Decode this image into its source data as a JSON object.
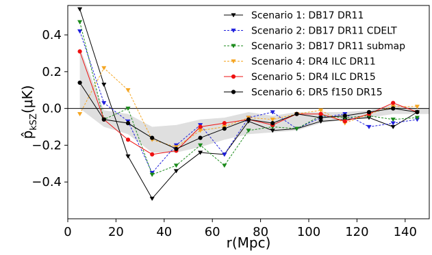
{
  "chart_data": {
    "type": "line",
    "xlabel": "r(Mpc)",
    "ylabel": "p̂kSZ(μK)",
    "ylabel_main": "p̂",
    "ylabel_sub": "kSZ",
    "ylabel_unit": "(μK)",
    "xlim": [
      0,
      150
    ],
    "ylim": [
      -0.6,
      0.56
    ],
    "x_ticks": [
      0,
      20,
      40,
      60,
      80,
      100,
      120,
      140
    ],
    "x_tick_labels": [
      "0",
      "20",
      "40",
      "60",
      "80",
      "100",
      "120",
      "140"
    ],
    "y_ticks": [
      -0.4,
      -0.2,
      0.0,
      0.2,
      0.4
    ],
    "y_tick_labels": [
      "−0.4",
      "−0.2",
      "0.0",
      "0.2",
      "0.4"
    ],
    "grid": false,
    "legend_position": "top-right",
    "zero_line": true,
    "band": {
      "x": [
        5,
        15,
        25,
        35,
        45,
        55,
        65,
        75,
        85,
        95,
        105,
        115,
        125,
        135,
        145,
        150
      ],
      "upper": [
        0.33,
        -0.01,
        -0.03,
        -0.1,
        -0.09,
        -0.06,
        -0.05,
        -0.02,
        -0.04,
        -0.02,
        -0.02,
        -0.02,
        -0.01,
        0.02,
        0.0,
        0.0
      ],
      "lower": [
        0.0,
        -0.1,
        -0.14,
        -0.24,
        -0.24,
        -0.21,
        -0.17,
        -0.14,
        -0.13,
        -0.12,
        -0.08,
        -0.06,
        -0.05,
        -0.03,
        -0.03,
        -0.03
      ]
    },
    "x": [
      5,
      15,
      25,
      35,
      45,
      55,
      65,
      75,
      85,
      95,
      105,
      115,
      125,
      135,
      145
    ],
    "series": [
      {
        "name": "Scenario 1: DB17 DR11",
        "color": "#000000",
        "dash": "solid",
        "marker": "triangle-down",
        "values": [
          0.54,
          0.13,
          -0.26,
          -0.49,
          -0.34,
          -0.24,
          -0.25,
          -0.07,
          -0.12,
          -0.11,
          -0.07,
          -0.06,
          -0.05,
          -0.1,
          -0.02
        ]
      },
      {
        "name": "Scenario 2: DB17 DR11 CDELT",
        "color": "#1f1fdd",
        "dash": "dashed",
        "marker": "triangle-down",
        "values": [
          0.42,
          0.03,
          -0.07,
          -0.35,
          -0.2,
          -0.09,
          -0.25,
          -0.05,
          -0.02,
          -0.11,
          -0.05,
          -0.03,
          -0.1,
          -0.08,
          -0.06
        ]
      },
      {
        "name": "Scenario 3: DB17 DR11 submap",
        "color": "#1a8a1a",
        "dash": "dashed",
        "marker": "triangle-down",
        "values": [
          0.47,
          -0.06,
          0.0,
          -0.36,
          -0.31,
          -0.2,
          -0.31,
          -0.12,
          -0.1,
          -0.11,
          -0.04,
          -0.05,
          -0.04,
          -0.06,
          -0.05
        ]
      },
      {
        "name": "Scenario 4: DR4 ILC DR11",
        "color": "#f5a623",
        "dash": "dashed",
        "marker": "triangle-down",
        "values": [
          -0.03,
          0.22,
          0.1,
          -0.17,
          -0.21,
          -0.12,
          -0.1,
          -0.05,
          -0.06,
          -0.03,
          -0.01,
          -0.08,
          -0.03,
          0.01,
          0.01
        ]
      },
      {
        "name": "Scenario 5: DR4 ILC DR15",
        "color": "#ee1111",
        "dash": "solid",
        "marker": "circle",
        "values": [
          0.31,
          -0.06,
          -0.17,
          -0.25,
          -0.23,
          -0.1,
          -0.08,
          -0.06,
          -0.09,
          -0.03,
          -0.03,
          -0.07,
          -0.03,
          0.03,
          -0.02
        ]
      },
      {
        "name": "Scenario 6: DR5 f150 DR15",
        "color": "#000000",
        "dash": "solid",
        "marker": "circle",
        "values": [
          0.14,
          -0.06,
          -0.08,
          -0.16,
          -0.22,
          -0.16,
          -0.11,
          -0.06,
          -0.08,
          -0.03,
          -0.05,
          -0.04,
          -0.02,
          0.0,
          -0.02
        ]
      }
    ]
  }
}
